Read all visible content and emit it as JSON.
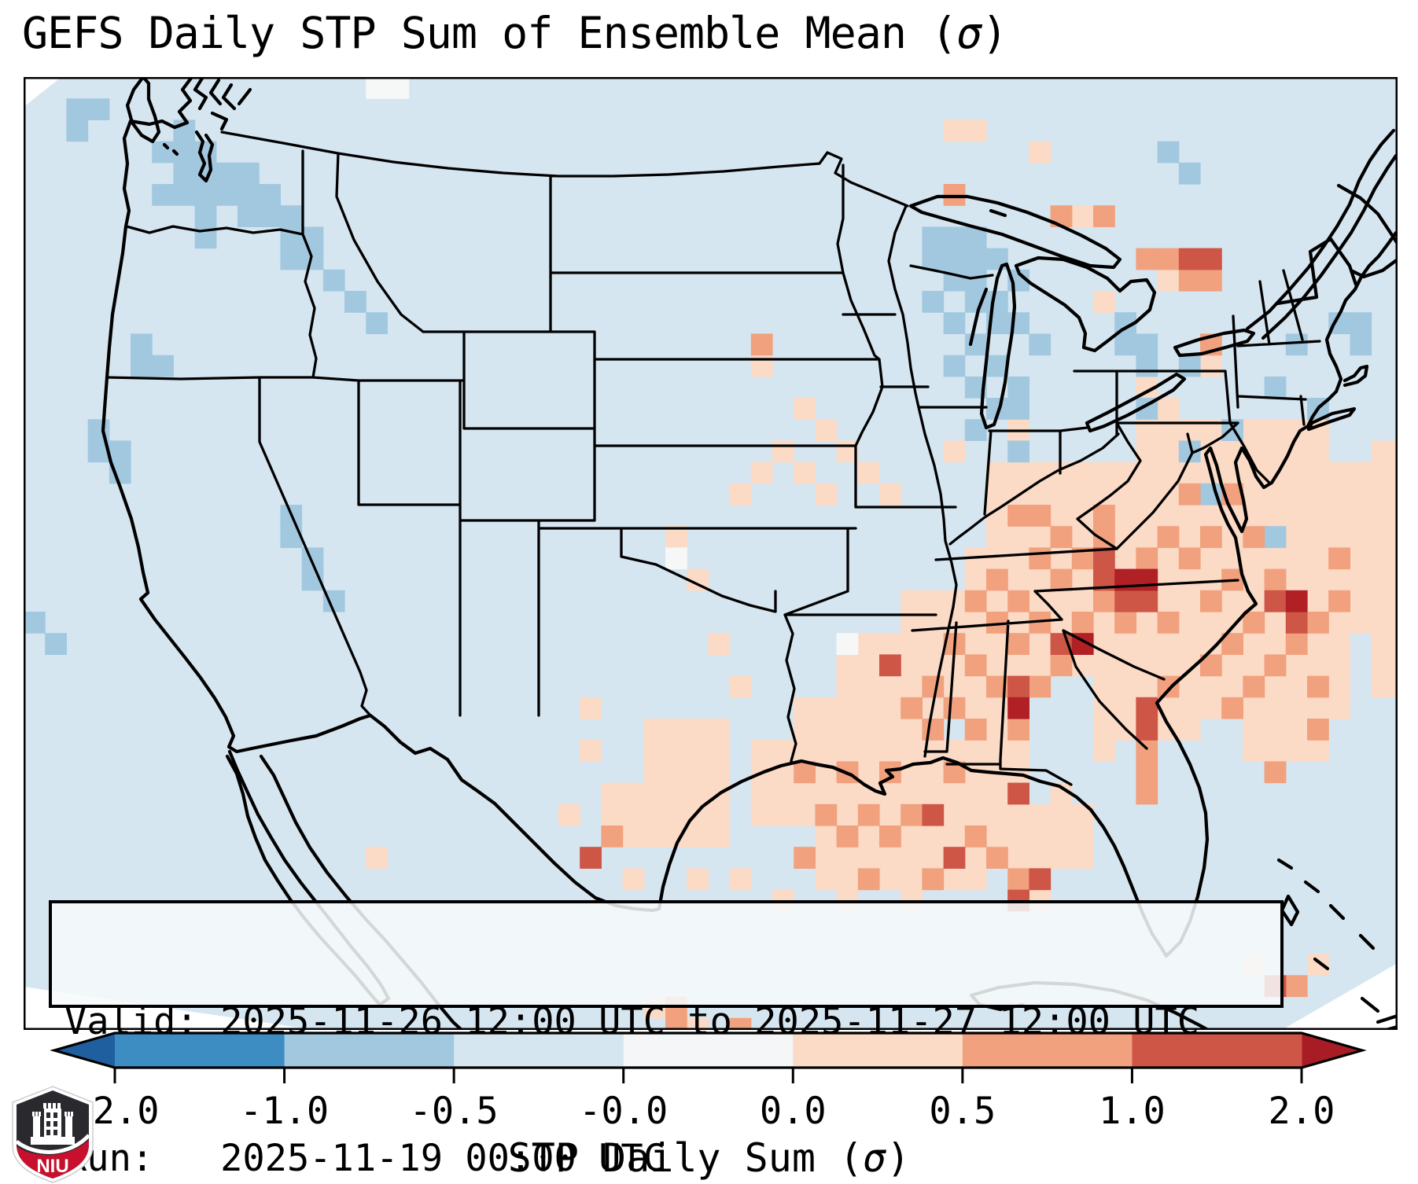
{
  "chart_data": {
    "type": "heatmap",
    "title_prefix": "GEFS Daily STP Sum of Ensemble Mean (",
    "title_sigma": "σ",
    "title_suffix": ")",
    "info_box": {
      "valid_label": "Valid: ",
      "valid_value": "2025-11-26 12:00 UTC to 2025-11-27 12:00 UTC",
      "run_label": "Run:   ",
      "run_value": "2025-11-19 00:00 UTC"
    },
    "colorbar": {
      "xlabel_prefix": "STP Daily Sum (",
      "xlabel_sigma": "σ",
      "xlabel_suffix": ")",
      "tick_labels": [
        "-2.0",
        "-1.0",
        "-0.5",
        "-0.0",
        "0.0",
        "0.5",
        "1.0",
        "2.0"
      ],
      "tick_values": [
        -2.0,
        -1.0,
        -0.5,
        -0.0,
        0.0,
        0.5,
        1.0,
        2.0
      ],
      "segment_colors": [
        "#3d8dc3",
        "#a2c8e0",
        "#d6e6f0",
        "#f4f6f7",
        "#fbdac6",
        "#f1a17e",
        "#cd5647"
      ],
      "under_color": "#1f5fa0",
      "over_color": "#a81c26",
      "outline_color": "#000000"
    },
    "map": {
      "background": "#d6e6f0",
      "cell_size": 27.2,
      "level_colors": {
        "blue": "#a2c8e0",
        "white": "#f6f7f7",
        "peach": "#fbdac6",
        "salmon": "#f1a17e",
        "red": "#cd5647",
        "darkred": "#b02025"
      },
      "peach_rects": [
        [
          50,
          18,
          13,
          8
        ],
        [
          52,
          16,
          9,
          3
        ],
        [
          48,
          20,
          5,
          8
        ],
        [
          54,
          26,
          8,
          4
        ],
        [
          50,
          26,
          5,
          5
        ],
        [
          63,
          17,
          2,
          12
        ],
        [
          45,
          18,
          6,
          4
        ],
        [
          44,
          22,
          6,
          6
        ],
        [
          41,
          24,
          5,
          6
        ],
        [
          38,
          26,
          5,
          6
        ],
        [
          36,
          29,
          6,
          6
        ],
        [
          40,
          31,
          6,
          5
        ],
        [
          34,
          31,
          4,
          4
        ],
        [
          29,
          30,
          4,
          6
        ],
        [
          27,
          33,
          3,
          3
        ],
        [
          44,
          28,
          3,
          7
        ],
        [
          46,
          34,
          4,
          3
        ],
        [
          57,
          30,
          4,
          2
        ],
        [
          37,
          35,
          8,
          3
        ]
      ],
      "cells": {
        "blue": [
          [
            2,
            1
          ],
          [
            3,
            1
          ],
          [
            2,
            2
          ],
          [
            7,
            2
          ],
          [
            6,
            3
          ],
          [
            7,
            3
          ],
          [
            8,
            3
          ],
          [
            7,
            4
          ],
          [
            8,
            4
          ],
          [
            9,
            4
          ],
          [
            10,
            4
          ],
          [
            6,
            5
          ],
          [
            7,
            5
          ],
          [
            8,
            5
          ],
          [
            9,
            5
          ],
          [
            10,
            5
          ],
          [
            11,
            5
          ],
          [
            8,
            6
          ],
          [
            10,
            6
          ],
          [
            11,
            6
          ],
          [
            12,
            6
          ],
          [
            8,
            7
          ],
          [
            12,
            7
          ],
          [
            13,
            7
          ],
          [
            12,
            8
          ],
          [
            13,
            8
          ],
          [
            14,
            9
          ],
          [
            15,
            10
          ],
          [
            16,
            11
          ],
          [
            5,
            12
          ],
          [
            5,
            13
          ],
          [
            6,
            13
          ],
          [
            3,
            16
          ],
          [
            3,
            17
          ],
          [
            4,
            17
          ],
          [
            4,
            18
          ],
          [
            12,
            20
          ],
          [
            12,
            21
          ],
          [
            13,
            22
          ],
          [
            13,
            23
          ],
          [
            14,
            24
          ],
          [
            0,
            25
          ],
          [
            1,
            26
          ],
          [
            42,
            7
          ],
          [
            43,
            7
          ],
          [
            44,
            7
          ],
          [
            42,
            8
          ],
          [
            43,
            8
          ],
          [
            44,
            8
          ],
          [
            45,
            8
          ],
          [
            43,
            9
          ],
          [
            44,
            9
          ],
          [
            46,
            9
          ],
          [
            42,
            10
          ],
          [
            44,
            10
          ],
          [
            45,
            10
          ],
          [
            43,
            11
          ],
          [
            45,
            11
          ],
          [
            46,
            11
          ],
          [
            44,
            12
          ],
          [
            47,
            12
          ],
          [
            43,
            13
          ],
          [
            45,
            13
          ],
          [
            44,
            14
          ],
          [
            46,
            14
          ],
          [
            45,
            15
          ],
          [
            46,
            15
          ],
          [
            44,
            16
          ],
          [
            46,
            17
          ],
          [
            53,
            3
          ],
          [
            54,
            4
          ],
          [
            51,
            11
          ],
          [
            51,
            12
          ],
          [
            52,
            12
          ],
          [
            52,
            13
          ],
          [
            54,
            13
          ],
          [
            58,
            14
          ],
          [
            61,
            11
          ],
          [
            62,
            11
          ],
          [
            62,
            12
          ],
          [
            52,
            15
          ],
          [
            54,
            17
          ],
          [
            60,
            15
          ],
          [
            59,
            12
          ],
          [
            56,
            16
          ],
          [
            58,
            21
          ],
          [
            55,
            19
          ]
        ],
        "white": [
          [
            16,
            0
          ],
          [
            17,
            0
          ],
          [
            38,
            26
          ],
          [
            30,
            22
          ]
        ],
        "peach": [
          [
            36,
            15
          ],
          [
            37,
            16
          ],
          [
            35,
            17
          ],
          [
            38,
            17
          ],
          [
            34,
            18
          ],
          [
            36,
            18
          ],
          [
            39,
            18
          ],
          [
            33,
            19
          ],
          [
            37,
            19
          ],
          [
            40,
            19
          ],
          [
            43,
            17
          ],
          [
            44,
            16
          ],
          [
            46,
            16
          ],
          [
            52,
            14
          ],
          [
            53,
            15
          ],
          [
            26,
            29
          ],
          [
            26,
            31
          ],
          [
            25,
            34
          ],
          [
            16,
            36
          ],
          [
            28,
            37
          ],
          [
            31,
            37
          ],
          [
            33,
            37
          ],
          [
            35,
            38
          ],
          [
            38,
            38
          ],
          [
            41,
            38
          ],
          [
            44,
            37
          ],
          [
            47,
            38
          ],
          [
            43,
            2
          ],
          [
            44,
            2
          ],
          [
            47,
            3
          ],
          [
            49,
            6
          ],
          [
            50,
            10
          ],
          [
            53,
            9
          ],
          [
            55,
            13
          ],
          [
            29,
            43
          ],
          [
            31,
            44
          ],
          [
            57,
            41
          ],
          [
            60,
            41
          ],
          [
            34,
            13
          ],
          [
            30,
            21
          ],
          [
            31,
            23
          ],
          [
            32,
            26
          ],
          [
            33,
            28
          ],
          [
            48,
            33
          ],
          [
            50,
            31
          ]
        ],
        "salmon": [
          [
            34,
            12
          ],
          [
            43,
            5
          ],
          [
            48,
            6
          ],
          [
            50,
            6
          ],
          [
            52,
            8
          ],
          [
            53,
            8
          ],
          [
            54,
            9
          ],
          [
            55,
            9
          ],
          [
            55,
            12
          ],
          [
            46,
            20
          ],
          [
            47,
            20
          ],
          [
            48,
            21
          ],
          [
            50,
            21
          ],
          [
            49,
            22
          ],
          [
            47,
            22
          ],
          [
            45,
            23
          ],
          [
            48,
            23
          ],
          [
            50,
            24
          ],
          [
            46,
            24
          ],
          [
            44,
            24
          ],
          [
            47,
            25
          ],
          [
            45,
            25
          ],
          [
            49,
            25
          ],
          [
            43,
            26
          ],
          [
            46,
            26
          ],
          [
            48,
            27
          ],
          [
            44,
            27
          ],
          [
            42,
            28
          ],
          [
            45,
            28
          ],
          [
            47,
            28
          ],
          [
            43,
            29
          ],
          [
            41,
            29
          ],
          [
            46,
            30
          ],
          [
            44,
            30
          ],
          [
            42,
            30
          ],
          [
            40,
            32
          ],
          [
            38,
            32
          ],
          [
            43,
            32
          ],
          [
            36,
            32
          ],
          [
            39,
            34
          ],
          [
            41,
            34
          ],
          [
            37,
            34
          ],
          [
            44,
            35
          ],
          [
            40,
            35
          ],
          [
            38,
            35
          ],
          [
            42,
            37
          ],
          [
            39,
            37
          ],
          [
            36,
            36
          ],
          [
            45,
            36
          ],
          [
            46,
            37
          ],
          [
            54,
            19
          ],
          [
            56,
            19
          ],
          [
            53,
            21
          ],
          [
            55,
            21
          ],
          [
            57,
            21
          ],
          [
            54,
            22
          ],
          [
            56,
            23
          ],
          [
            58,
            23
          ],
          [
            55,
            24
          ],
          [
            53,
            25
          ],
          [
            57,
            25
          ],
          [
            56,
            26
          ],
          [
            58,
            27
          ],
          [
            55,
            27
          ],
          [
            53,
            28
          ],
          [
            57,
            28
          ],
          [
            56,
            29
          ],
          [
            59,
            26
          ],
          [
            60,
            25
          ],
          [
            61,
            24
          ],
          [
            60,
            28
          ],
          [
            52,
            22
          ],
          [
            51,
            25
          ],
          [
            50,
            20
          ],
          [
            61,
            22
          ],
          [
            58,
            32
          ],
          [
            60,
            30
          ],
          [
            52,
            31
          ],
          [
            52,
            32
          ],
          [
            52,
            33
          ],
          [
            27,
            35
          ],
          [
            30,
            43
          ],
          [
            30,
            44
          ],
          [
            59,
            42
          ],
          [
            33,
            44
          ]
        ],
        "red": [
          [
            54,
            8
          ],
          [
            55,
            8
          ],
          [
            50,
            22
          ],
          [
            50,
            23
          ],
          [
            51,
            24
          ],
          [
            52,
            24
          ],
          [
            48,
            26
          ],
          [
            40,
            27
          ],
          [
            46,
            28
          ],
          [
            42,
            34
          ],
          [
            43,
            36
          ],
          [
            46,
            33
          ],
          [
            47,
            37
          ],
          [
            52,
            29
          ],
          [
            52,
            30
          ],
          [
            26,
            36
          ],
          [
            58,
            24
          ],
          [
            59,
            25
          ],
          [
            46,
            38
          ],
          [
            58,
            42
          ]
        ],
        "darkred": [
          [
            51,
            23
          ],
          [
            52,
            23
          ],
          [
            59,
            24
          ],
          [
            46,
            29
          ],
          [
            49,
            26
          ]
        ]
      }
    },
    "logo": {
      "text": "NIU",
      "shield_dark": "#2a2a2e",
      "shield_red": "#c8102e"
    }
  }
}
